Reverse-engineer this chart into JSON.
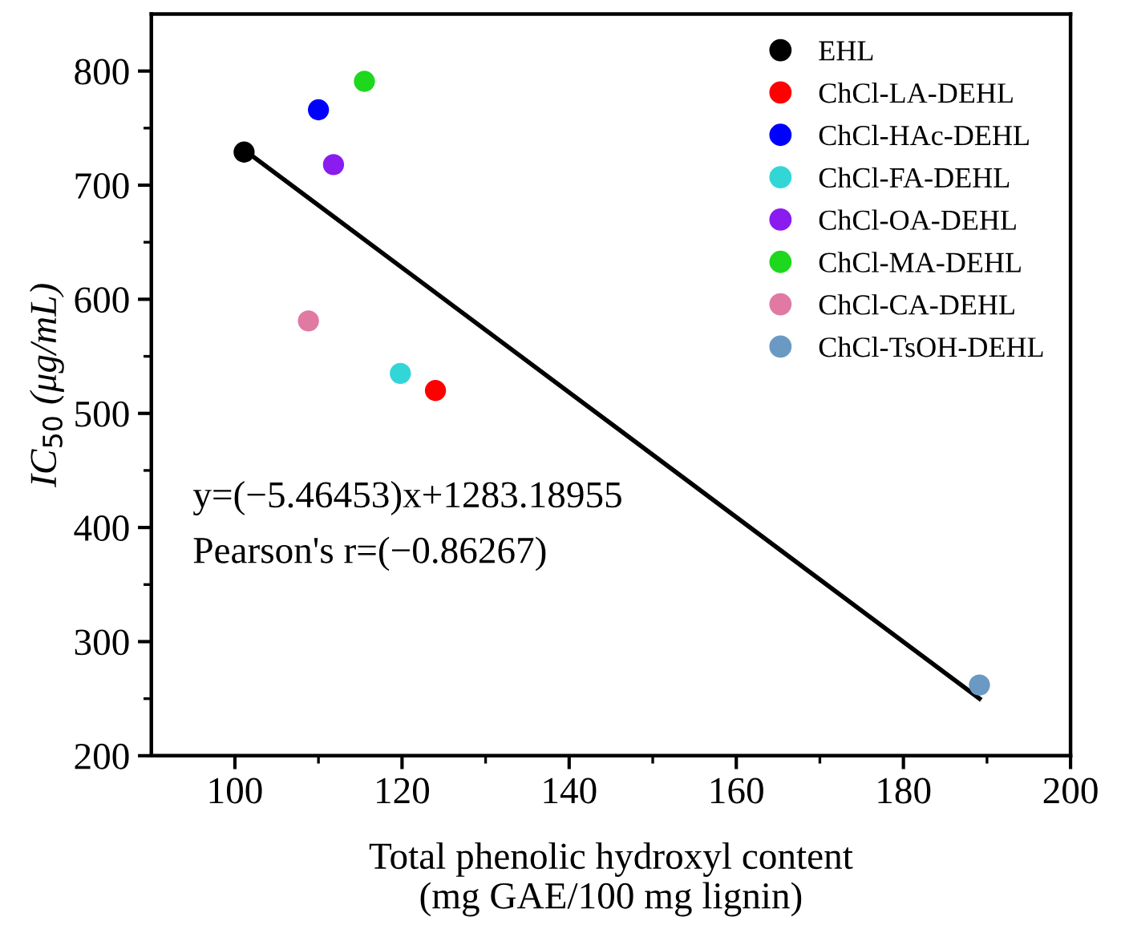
{
  "chart_data": {
    "type": "scatter",
    "xlabel": "Total phenolic hydroxyl content\n(mg GAE/100 mg lignin)",
    "ylabel": "IC$_{50}$ (μg/mL)",
    "xlim": [
      90,
      200
    ],
    "xticks": [
      100,
      120,
      140,
      160,
      180,
      200
    ],
    "ylim": [
      200,
      850
    ],
    "yticks": [
      200,
      300,
      400,
      500,
      600,
      700,
      800
    ],
    "legend": "top right",
    "marker": "circle",
    "grid": false,
    "annotations": [
      "y=(−5.46453)x+1283.18955",
      "Pearson's r=(−0.86267)"
    ],
    "series": [
      {
        "type": "line",
        "color": "#000000",
        "x": [
          101.1,
          189.1
        ],
        "values": [
          731,
          250
        ],
        "marker": "none"
      },
      {
        "name": "EHL",
        "color": "#000000",
        "x": [
          101.1
        ],
        "values": [
          729
        ]
      },
      {
        "name": "ChCl-LA-DEHL",
        "color": "#ff0000",
        "x": [
          124.0
        ],
        "values": [
          520
        ]
      },
      {
        "name": "ChCl-HAc-DEHL",
        "color": "#0000ff",
        "x": [
          110.0
        ],
        "values": [
          766
        ]
      },
      {
        "name": "ChCl-FA-DEHL",
        "color": "#33d6d6",
        "x": [
          119.8
        ],
        "values": [
          535
        ]
      },
      {
        "name": "ChCl-OA-DEHL",
        "color": "#8a1cf0",
        "x": [
          111.8
        ],
        "values": [
          718
        ]
      },
      {
        "name": "ChCl-MA-DEHL",
        "color": "#1ed81e",
        "x": [
          115.5
        ],
        "values": [
          791
        ]
      },
      {
        "name": "ChCl-CA-DEHL",
        "color": "#e07aa3",
        "x": [
          108.8
        ],
        "values": [
          581
        ]
      },
      {
        "name": "ChCl-TsOH-DEHL",
        "color": "#6a9ac4",
        "x": [
          189.1
        ],
        "values": [
          262
        ]
      }
    ]
  }
}
